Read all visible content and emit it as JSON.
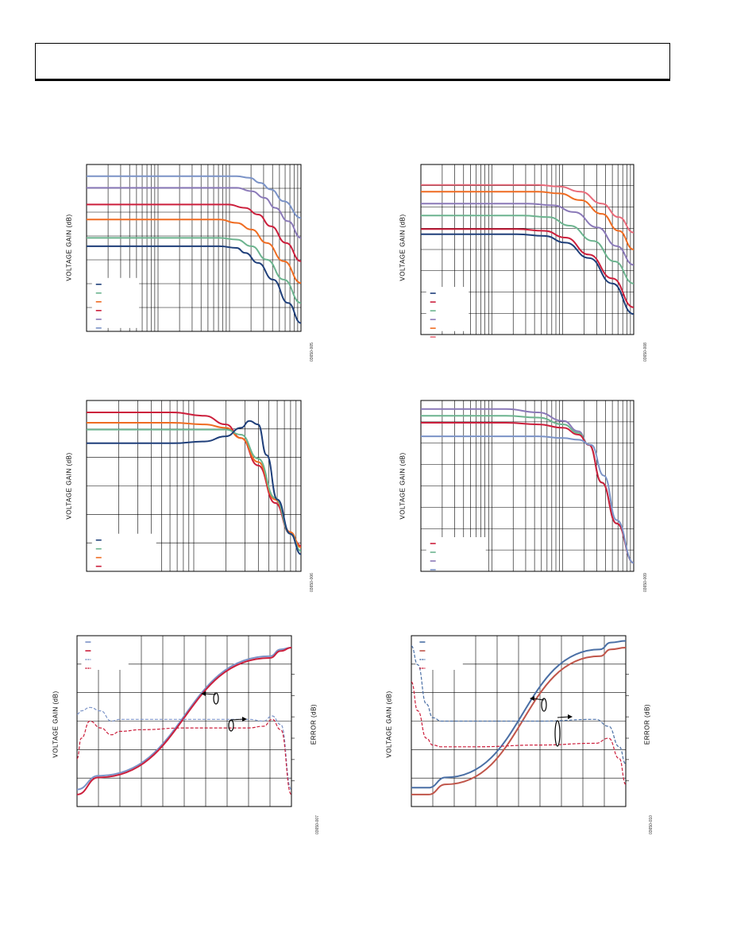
{
  "page": {
    "header_text": ""
  },
  "colors": {
    "navy": "#1f3f7a",
    "green": "#6cb48f",
    "orange": "#ef6c22",
    "crimson": "#cc1f3c",
    "purple": "#8a79b8",
    "steel": "#7b93c7",
    "pink": "#e86b7a",
    "blue2": "#4a6fa5",
    "red2": "#cc4444",
    "rust": "#c0554a"
  },
  "charts": [
    {
      "id": "fig-top-left",
      "fig_id": "03650-005",
      "ylabel": "VOLTAGE GAIN (dB)",
      "legend_colors": [
        "navy",
        "green",
        "orange",
        "crimson",
        "purple",
        "steel"
      ]
    },
    {
      "id": "fig-top-right",
      "fig_id": "03650-008",
      "ylabel": "VOLTAGE GAIN (dB)",
      "legend_colors": [
        "navy",
        "crimson",
        "green",
        "purple",
        "orange",
        "pink"
      ]
    },
    {
      "id": "fig-mid-left",
      "fig_id": "03650-006",
      "ylabel": "VOLTAGE GAIN (dB)",
      "legend_colors": [
        "navy",
        "green",
        "orange",
        "crimson"
      ]
    },
    {
      "id": "fig-mid-right",
      "fig_id": "03650-009",
      "ylabel": "VOLTAGE GAIN (dB)",
      "legend_colors": [
        "crimson",
        "green",
        "purple",
        "steel"
      ]
    },
    {
      "id": "fig-bot-left",
      "fig_id": "03650-007",
      "ylabel": "VOLTAGE GAIN (dB)",
      "y2label": "ERROR (dB)",
      "legend_colors": [
        "steel",
        "crimson",
        "steel",
        "crimson"
      ]
    },
    {
      "id": "fig-bot-right",
      "fig_id": "03650-010",
      "ylabel": "VOLTAGE GAIN (dB)",
      "y2label": "ERROR (dB)",
      "legend_colors": [
        "blue2",
        "rust",
        "blue2",
        "crimson"
      ]
    }
  ],
  "chart_data": [
    {
      "type": "line",
      "title": "",
      "xlabel": "",
      "ylabel": "VOLTAGE GAIN (dB)",
      "x_scale": "log",
      "x_range": [
        0,
        1
      ],
      "y_range": [
        0,
        1
      ],
      "grid": true,
      "note": "axis tick values not printed; values normalized 0-1 (x in decades fraction, y fraction of plot height from bottom)",
      "series": [
        {
          "color": "steel",
          "x": [
            0,
            0.7,
            0.76,
            0.81,
            0.86,
            0.92,
            1.0
          ],
          "values": [
            0.93,
            0.93,
            0.92,
            0.89,
            0.85,
            0.78,
            0.68
          ]
        },
        {
          "color": "purple",
          "x": [
            0,
            0.7,
            0.77,
            0.83,
            0.88,
            0.94,
            1.0
          ],
          "values": [
            0.86,
            0.86,
            0.84,
            0.8,
            0.74,
            0.66,
            0.56
          ]
        },
        {
          "color": "crimson",
          "x": [
            0,
            0.66,
            0.74,
            0.8,
            0.86,
            0.93,
            1.0
          ],
          "values": [
            0.76,
            0.76,
            0.74,
            0.7,
            0.63,
            0.53,
            0.42
          ]
        },
        {
          "color": "orange",
          "x": [
            0,
            0.62,
            0.7,
            0.77,
            0.84,
            0.92,
            1.0
          ],
          "values": [
            0.67,
            0.67,
            0.65,
            0.61,
            0.53,
            0.42,
            0.29
          ]
        },
        {
          "color": "green",
          "x": [
            0,
            0.62,
            0.7,
            0.77,
            0.84,
            0.92,
            1.0
          ],
          "values": [
            0.56,
            0.56,
            0.55,
            0.51,
            0.43,
            0.31,
            0.17
          ]
        },
        {
          "color": "navy",
          "x": [
            0,
            0.62,
            0.7,
            0.74,
            0.8,
            0.87,
            0.94,
            1.0
          ],
          "values": [
            0.51,
            0.51,
            0.5,
            0.47,
            0.41,
            0.31,
            0.17,
            0.05
          ]
        }
      ]
    },
    {
      "type": "line",
      "title": "",
      "xlabel": "",
      "ylabel": "VOLTAGE GAIN (dB)",
      "x_scale": "log",
      "x_range": [
        0,
        1
      ],
      "y_range": [
        0,
        1
      ],
      "grid": true,
      "note": "axis tick values not printed; values normalized 0-1",
      "series": [
        {
          "color": "pink",
          "x": [
            0,
            0.55,
            0.65,
            0.75,
            0.85,
            0.93,
            1.0
          ],
          "values": [
            0.88,
            0.88,
            0.87,
            0.84,
            0.77,
            0.69,
            0.6
          ]
        },
        {
          "color": "orange",
          "x": [
            0,
            0.55,
            0.65,
            0.75,
            0.85,
            0.93,
            1.0
          ],
          "values": [
            0.84,
            0.84,
            0.83,
            0.79,
            0.71,
            0.61,
            0.5
          ]
        },
        {
          "color": "purple",
          "x": [
            0,
            0.5,
            0.62,
            0.72,
            0.83,
            0.92,
            1.0
          ],
          "values": [
            0.77,
            0.77,
            0.76,
            0.72,
            0.63,
            0.52,
            0.41
          ]
        },
        {
          "color": "green",
          "x": [
            0,
            0.48,
            0.6,
            0.7,
            0.81,
            0.91,
            1.0
          ],
          "values": [
            0.7,
            0.7,
            0.69,
            0.64,
            0.55,
            0.43,
            0.3
          ]
        },
        {
          "color": "crimson",
          "x": [
            0,
            0.45,
            0.58,
            0.68,
            0.79,
            0.9,
            1.0
          ],
          "values": [
            0.62,
            0.62,
            0.61,
            0.57,
            0.47,
            0.33,
            0.16
          ]
        },
        {
          "color": "navy",
          "x": [
            0,
            0.45,
            0.58,
            0.68,
            0.79,
            0.9,
            1.0
          ],
          "values": [
            0.59,
            0.59,
            0.58,
            0.54,
            0.45,
            0.3,
            0.12
          ]
        }
      ]
    },
    {
      "type": "line",
      "title": "",
      "xlabel": "",
      "ylabel": "VOLTAGE GAIN (dB)",
      "x_scale": "log",
      "x_range": [
        0,
        1
      ],
      "y_range": [
        0,
        1
      ],
      "grid": true,
      "note": "axis tick values not printed; values normalized 0-1",
      "series": [
        {
          "color": "crimson",
          "x": [
            0,
            0.4,
            0.55,
            0.65,
            0.72,
            0.8,
            0.88,
            0.95,
            1.0
          ],
          "values": [
            0.93,
            0.93,
            0.91,
            0.86,
            0.78,
            0.62,
            0.4,
            0.22,
            0.15
          ]
        },
        {
          "color": "orange",
          "x": [
            0,
            0.4,
            0.55,
            0.65,
            0.72,
            0.8,
            0.88,
            0.95,
            1.0
          ],
          "values": [
            0.87,
            0.87,
            0.86,
            0.84,
            0.78,
            0.64,
            0.42,
            0.23,
            0.14
          ]
        },
        {
          "color": "green",
          "x": [
            0,
            0.4,
            0.55,
            0.65,
            0.72,
            0.8,
            0.88,
            0.95,
            1.0
          ],
          "values": [
            0.83,
            0.83,
            0.83,
            0.83,
            0.8,
            0.66,
            0.43,
            0.22,
            0.12
          ]
        },
        {
          "color": "navy",
          "x": [
            0,
            0.4,
            0.55,
            0.65,
            0.72,
            0.76,
            0.8,
            0.84,
            0.89,
            0.95,
            1.0
          ],
          "values": [
            0.75,
            0.75,
            0.76,
            0.79,
            0.84,
            0.88,
            0.86,
            0.68,
            0.42,
            0.22,
            0.1
          ]
        }
      ]
    },
    {
      "type": "line",
      "title": "",
      "xlabel": "",
      "ylabel": "VOLTAGE GAIN (dB)",
      "x_scale": "log",
      "x_range": [
        0,
        1
      ],
      "y_range": [
        0,
        1
      ],
      "grid": true,
      "note": "axis tick values not printed; values normalized 0-1",
      "series": [
        {
          "color": "purple",
          "x": [
            0,
            0.4,
            0.55,
            0.67,
            0.74,
            0.79,
            0.85,
            0.92,
            1.0
          ],
          "values": [
            0.95,
            0.95,
            0.93,
            0.88,
            0.82,
            0.74,
            0.52,
            0.28,
            0.05
          ]
        },
        {
          "color": "green",
          "x": [
            0,
            0.4,
            0.55,
            0.67,
            0.74,
            0.79,
            0.85,
            0.92,
            1.0
          ],
          "values": [
            0.91,
            0.91,
            0.9,
            0.86,
            0.81,
            0.74,
            0.52,
            0.28,
            0.05
          ]
        },
        {
          "color": "crimson",
          "x": [
            0,
            0.4,
            0.55,
            0.67,
            0.74,
            0.79,
            0.85,
            0.92,
            1.0
          ],
          "values": [
            0.87,
            0.87,
            0.86,
            0.84,
            0.8,
            0.74,
            0.52,
            0.28,
            0.05
          ]
        },
        {
          "color": "steel",
          "x": [
            0,
            0.4,
            0.55,
            0.67,
            0.74,
            0.8,
            0.86,
            0.92,
            1.0
          ],
          "values": [
            0.79,
            0.79,
            0.79,
            0.78,
            0.77,
            0.74,
            0.56,
            0.3,
            0.05
          ]
        }
      ]
    },
    {
      "type": "line",
      "title": "",
      "xlabel": "",
      "ylabel": "VOLTAGE GAIN (dB)",
      "y2label": "ERROR (dB)",
      "x_scale": "linear",
      "x_range": [
        0,
        1
      ],
      "y_range": [
        0,
        1
      ],
      "grid": true,
      "note": "axis tick values not printed; values normalized 0-1; dashed series read on right (ERROR) axis",
      "series": [
        {
          "color": "steel",
          "dashed": false,
          "x": [
            0,
            0.1,
            0.9,
            0.95,
            1.0
          ],
          "values": [
            0.1,
            0.18,
            0.88,
            0.92,
            0.93
          ]
        },
        {
          "color": "crimson",
          "dashed": false,
          "x": [
            0,
            0.1,
            0.9,
            0.95,
            1.0
          ],
          "values": [
            0.07,
            0.17,
            0.87,
            0.91,
            0.93
          ]
        },
        {
          "color": "steel",
          "dashed": true,
          "x": [
            0,
            0.02,
            0.06,
            0.11,
            0.16,
            0.2,
            0.3,
            0.5,
            0.8,
            0.87,
            0.91,
            0.95,
            1.0
          ],
          "values": [
            0.54,
            0.56,
            0.58,
            0.56,
            0.5,
            0.51,
            0.51,
            0.51,
            0.51,
            0.5,
            0.53,
            0.48,
            0.1
          ]
        },
        {
          "color": "crimson",
          "dashed": true,
          "x": [
            0,
            0.02,
            0.06,
            0.11,
            0.16,
            0.2,
            0.3,
            0.5,
            0.8,
            0.87,
            0.91,
            0.95,
            1.0
          ],
          "values": [
            0.28,
            0.4,
            0.5,
            0.46,
            0.42,
            0.44,
            0.45,
            0.46,
            0.46,
            0.47,
            0.51,
            0.45,
            0.07
          ]
        }
      ]
    },
    {
      "type": "line",
      "title": "",
      "xlabel": "",
      "ylabel": "VOLTAGE GAIN (dB)",
      "y2label": "ERROR (dB)",
      "x_scale": "linear",
      "x_range": [
        0,
        1
      ],
      "y_range": [
        0,
        1
      ],
      "grid": true,
      "note": "axis tick values not printed; values normalized 0-1; dashed series read on right (ERROR) axis",
      "series": [
        {
          "color": "blue2",
          "dashed": false,
          "x": [
            0,
            0.08,
            0.16,
            0.88,
            0.93,
            1.0
          ],
          "values": [
            0.11,
            0.11,
            0.17,
            0.92,
            0.96,
            0.97
          ]
        },
        {
          "color": "rust",
          "dashed": false,
          "x": [
            0,
            0.08,
            0.16,
            0.88,
            0.93,
            1.0
          ],
          "values": [
            0.07,
            0.07,
            0.13,
            0.88,
            0.92,
            0.93
          ]
        },
        {
          "color": "blue2",
          "dashed": true,
          "x": [
            0,
            0.03,
            0.07,
            0.1,
            0.14,
            0.3,
            0.6,
            0.86,
            0.92,
            0.97,
            1.0
          ],
          "values": [
            0.94,
            0.83,
            0.6,
            0.52,
            0.5,
            0.5,
            0.5,
            0.51,
            0.47,
            0.35,
            0.25
          ]
        },
        {
          "color": "crimson",
          "dashed": true,
          "x": [
            0,
            0.03,
            0.07,
            0.1,
            0.14,
            0.3,
            0.6,
            0.86,
            0.92,
            0.97,
            1.0
          ],
          "values": [
            0.73,
            0.56,
            0.4,
            0.36,
            0.35,
            0.35,
            0.36,
            0.37,
            0.4,
            0.28,
            0.13
          ]
        }
      ]
    }
  ]
}
